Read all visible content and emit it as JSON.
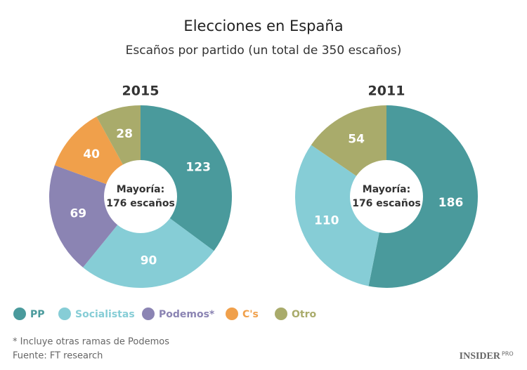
{
  "title": "Elecciones en España",
  "subtitle": "Escaños por partido (un total de 350 escaños)",
  "legend": [
    {
      "name": "PP",
      "color": "#4a9a9c"
    },
    {
      "name": "Socialistas",
      "color": "#86cdd6"
    },
    {
      "name": "Podemos*",
      "color": "#8b84b3"
    },
    {
      "name": "C's",
      "color": "#f0a04b"
    },
    {
      "name": "Otro",
      "color": "#a9ab6b"
    }
  ],
  "footnote": "* Incluye otras ramas de Podemos",
  "source": "Fuente: FT research",
  "brand": "INSIDER",
  "brand_sub": "PRO",
  "chart_data": [
    {
      "type": "pie",
      "title": "2015",
      "categories": [
        "PP",
        "Socialistas",
        "Podemos*",
        "C's",
        "Otro"
      ],
      "values": [
        123,
        90,
        69,
        40,
        28
      ],
      "colors": [
        "#4a9a9c",
        "#86cdd6",
        "#8b84b3",
        "#f0a04b",
        "#a9ab6b"
      ],
      "center_label": [
        "Mayoría:",
        "176 escaños"
      ]
    },
    {
      "type": "pie",
      "title": "2011",
      "categories": [
        "PP",
        "Socialistas",
        "Otro"
      ],
      "values": [
        186,
        110,
        54
      ],
      "colors": [
        "#4a9a9c",
        "#86cdd6",
        "#a9ab6b"
      ],
      "center_label": [
        "Mayoría:",
        "176 escaños"
      ]
    }
  ]
}
